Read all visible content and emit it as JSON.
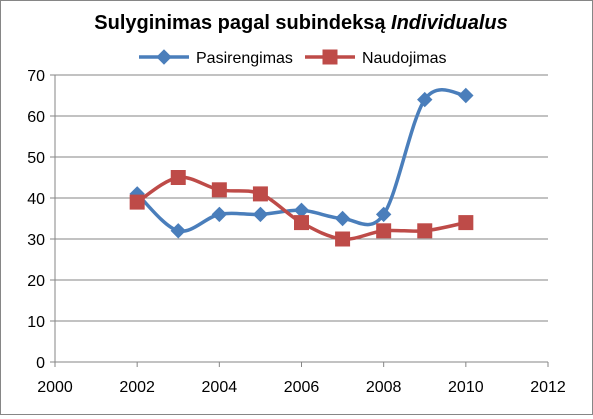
{
  "colors": {
    "series_pasirengimas": "#4A7EBB",
    "series_naudojimas": "#BE4B48",
    "gridline": "#868686",
    "axis": "#868686",
    "frame": "#868686"
  },
  "chart_data": {
    "type": "line",
    "title": {
      "main": "Sulyginimas pagal subindeksą ",
      "emphasis": "Individualus"
    },
    "xlabel": "",
    "ylabel": "",
    "xlim": [
      2000,
      2012
    ],
    "ylim": [
      0,
      70
    ],
    "x_ticks": [
      2000,
      2002,
      2004,
      2006,
      2008,
      2010,
      2012
    ],
    "y_ticks": [
      0,
      10,
      20,
      30,
      40,
      50,
      60,
      70
    ],
    "grid": "horizontal",
    "legend_position": "top",
    "series": [
      {
        "name": "Pasirengimas",
        "marker": "diamond",
        "smooth": true,
        "x": [
          2002,
          2003,
          2004,
          2005,
          2006,
          2007,
          2008,
          2009,
          2010
        ],
        "values": [
          41,
          32,
          36,
          36,
          37,
          35,
          36,
          64,
          65
        ]
      },
      {
        "name": "Naudojimas",
        "marker": "square",
        "smooth": true,
        "x": [
          2002,
          2003,
          2004,
          2005,
          2006,
          2007,
          2008,
          2009,
          2010
        ],
        "values": [
          39,
          45,
          42,
          41,
          34,
          30,
          32,
          32,
          34
        ]
      }
    ]
  }
}
